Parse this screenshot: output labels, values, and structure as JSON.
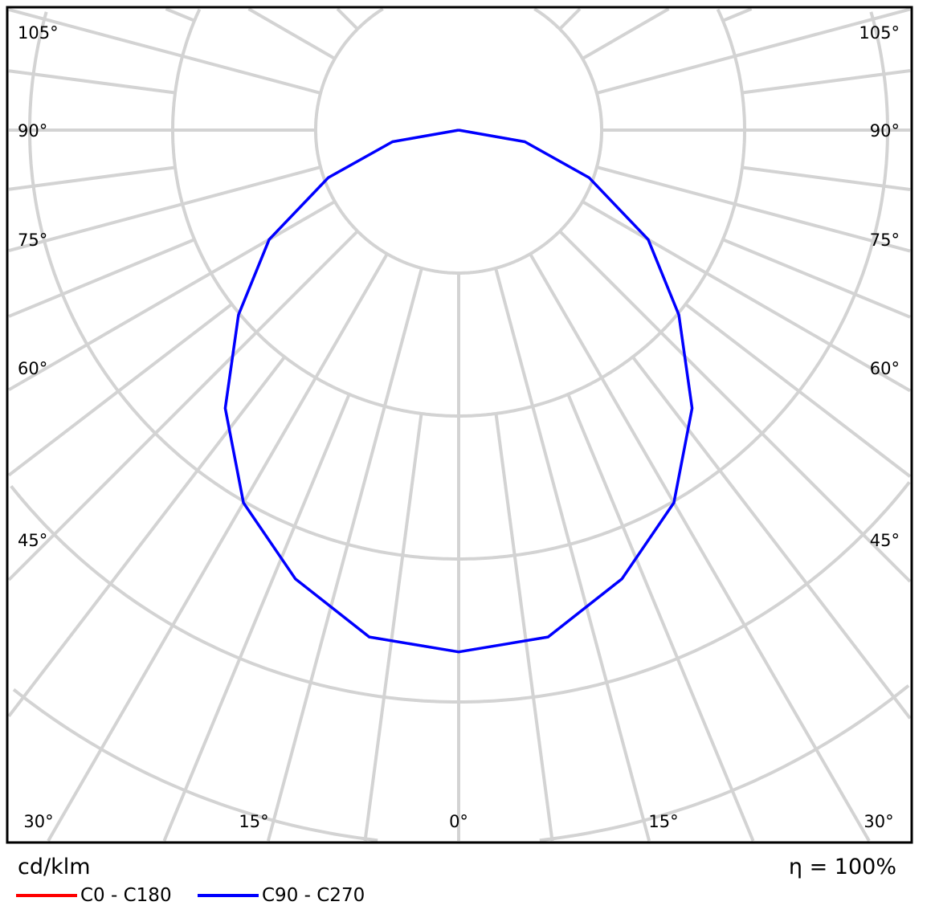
{
  "chart_data": {
    "type": "polar-line",
    "unit_label": "cd/klm",
    "efficiency_label": "η = 100%",
    "angle_tick_labels": {
      "left": [
        "105°",
        "90°",
        "75°",
        "60°",
        "45°"
      ],
      "right": [
        "105°",
        "90°",
        "75°",
        "60°",
        "45°"
      ],
      "bottom": [
        "30°",
        "15°",
        "0°",
        "15°",
        "30°"
      ]
    },
    "grid": true,
    "ring_step": 100,
    "angles_deg": [
      0,
      10,
      20,
      30,
      40,
      50,
      60,
      70,
      80,
      90
    ],
    "series": [
      {
        "name": "C0 - C180",
        "color": "#ff0000",
        "values": [
          365,
          360,
          334,
          301,
          254,
          201,
          153,
          97,
          47,
          0
        ]
      },
      {
        "name": "C90 - C270",
        "color": "#0000ff",
        "values": [
          365,
          360,
          334,
          301,
          254,
          201,
          153,
          97,
          47,
          0
        ]
      }
    ],
    "legend_placement": "bottom-left"
  }
}
